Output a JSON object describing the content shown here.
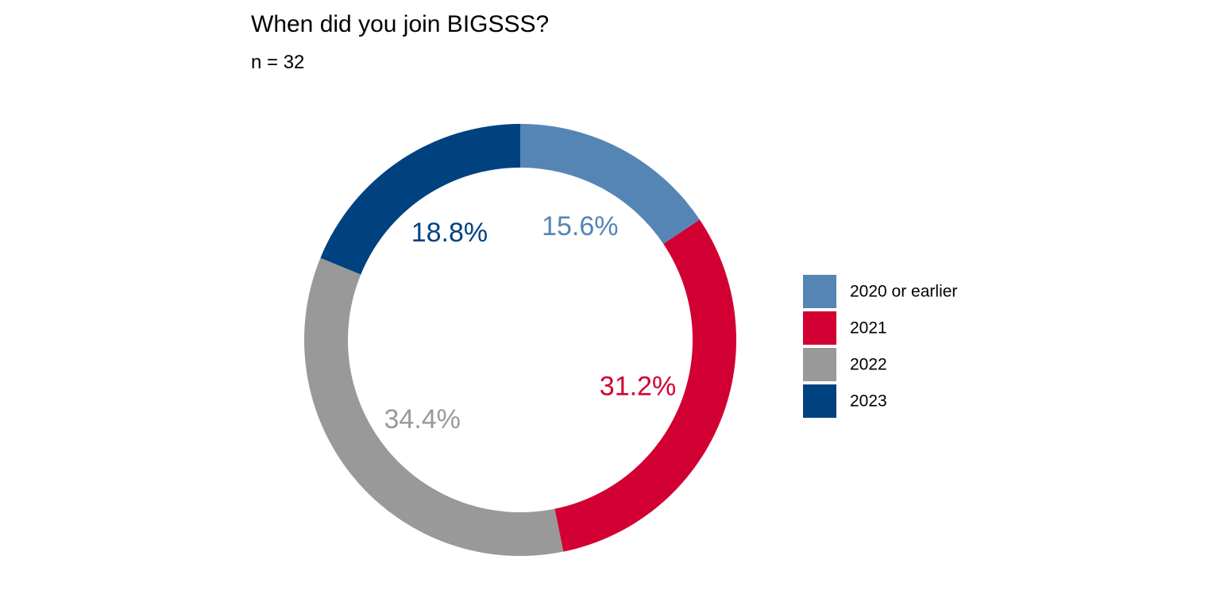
{
  "chart_data": {
    "type": "pie",
    "title": "When did you join BIGSSS?",
    "subtitle": "n = 32",
    "categories": [
      "2020 or earlier",
      "2021",
      "2022",
      "2023"
    ],
    "values": [
      15.6,
      31.2,
      34.4,
      18.8
    ],
    "data_labels": [
      "15.6%",
      "31.2%",
      "34.4%",
      "18.8%"
    ],
    "colors": [
      "#5585b5",
      "#d20032",
      "#999999",
      "#004280"
    ],
    "legend": {
      "position": "right",
      "entries": [
        "2020 or earlier",
        "2021",
        "2022",
        "2023"
      ]
    },
    "grid": false
  }
}
